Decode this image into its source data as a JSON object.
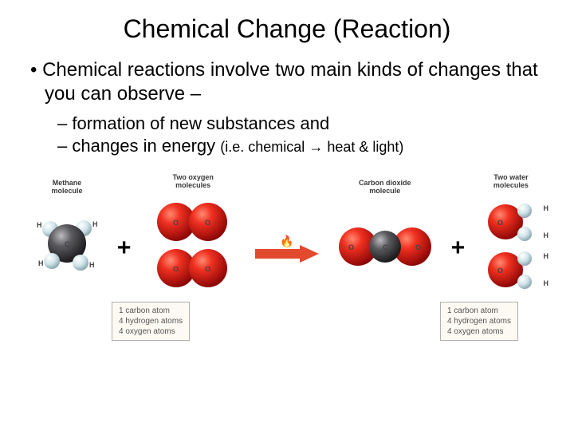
{
  "title": "Chemical Change (Reaction)",
  "bullet": "Chemical reactions involve two main kinds of changes that you can observe –",
  "sub1": "– formation of new substances and",
  "sub2_a": "– changes in energy ",
  "sub2_b": "(i.e. chemical ",
  "sub2_c": " heat & light)",
  "arrow_glyph": "→",
  "labels": {
    "methane": "Methane\nmolecule",
    "oxygen": "Two oxygen\nmolecules",
    "co2": "Carbon dioxide\nmolecule",
    "water": "Two water\nmolecules"
  },
  "plus": "+",
  "colors": {
    "carbon_dark": "#3a3a3c",
    "carbon_hi": "#7c7c80",
    "oxygen_dark": "#a00808",
    "oxygen_hi": "#ff3a2a",
    "hydrogen_dark": "#9fb8bf",
    "hydrogen_hi": "#e8f4f7",
    "arrow": "#e03a20"
  },
  "atoms": {
    "C": "C",
    "H": "H",
    "O": "O"
  },
  "legend_left": [
    "1 carbon atom",
    "4 hydrogen atoms",
    "4 oxygen atoms"
  ],
  "legend_right": [
    "1 carbon atom",
    "4 hydrogen atoms",
    "4 oxygen atoms"
  ]
}
